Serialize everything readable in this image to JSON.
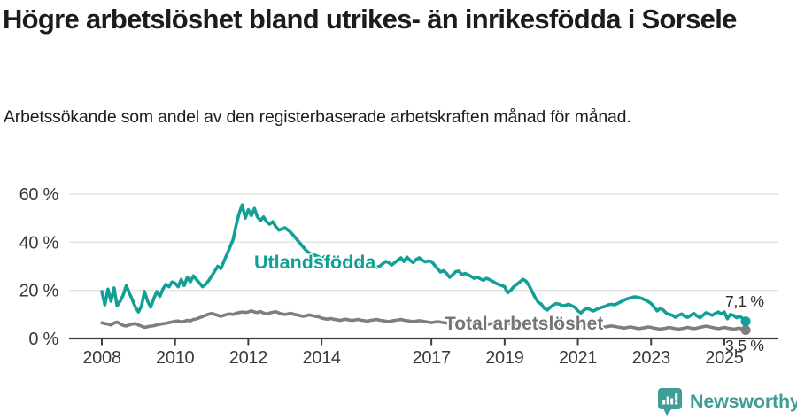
{
  "title": "Högre arbetslöshet bland utrikes- än inrikesfödda i Sorsele",
  "subtitle": "Arbetssökande som andel av den registerbaserade arbetskraften månad för månad.",
  "colors": {
    "series_foreign": "#12a096",
    "series_total": "#7e7e7e",
    "grid": "#e3e3e3",
    "axis": "#3e3e3e",
    "tick_text": "#3a3a3a",
    "end_label_text": "#2d2d2d",
    "total_label_text": "#757575",
    "logo": "#3f9d97"
  },
  "chart_data": {
    "type": "line",
    "x_start_year": 2008,
    "x_step_months": 1,
    "ylim": [
      0,
      60
    ],
    "grid": "horizontal",
    "y_ticks": [
      "0 %",
      "20 %",
      "40 %",
      "60 %"
    ],
    "y_tick_values": [
      0,
      20,
      40,
      60
    ],
    "x_tick_labels": [
      "2008",
      "2010",
      "2012",
      "2014",
      "2017",
      "2019",
      "2021",
      "2023",
      "2025"
    ],
    "x_tick_values": [
      2008,
      2010,
      2012,
      2014,
      2017,
      2019,
      2021,
      2023,
      2025
    ],
    "legend_position": "inline-labels",
    "series": [
      {
        "name": "Total arbetslöshet",
        "end_label": "3,5 %",
        "color": "#7e7e7e",
        "values": [
          6.5,
          6.2,
          6,
          5.6,
          6.4,
          6.8,
          6.1,
          5.4,
          5.2,
          5.6,
          6,
          6.2,
          5.6,
          5.1,
          4.6,
          4.9,
          5.1,
          5.3,
          5.6,
          5.9,
          6.1,
          6.3,
          6.6,
          6.9,
          7.1,
          7.3,
          6.9,
          7.1,
          7.6,
          7.3,
          7.9,
          8.1,
          8.6,
          9.1,
          9.6,
          10.1,
          10.4,
          10,
          9.6,
          9.2,
          9.6,
          10,
          10.2,
          10,
          10.5,
          10.8,
          11,
          10.8,
          11,
          11.5,
          11,
          10.8,
          11.2,
          10.6,
          10.2,
          10.6,
          10.9,
          11.1,
          10.6,
          10.2,
          10,
          10.2,
          10.5,
          10,
          9.8,
          9.5,
          9.2,
          9.5,
          9.8,
          9.5,
          9.2,
          9,
          8.5,
          8.2,
          8,
          8.3,
          8,
          7.8,
          7.5,
          7.8,
          8,
          7.7,
          7.5,
          7.7,
          7.9,
          7.6,
          7.4,
          7.2,
          7.5,
          7.7,
          7.9,
          7.6,
          7.4,
          7.2,
          7,
          7.3,
          7.5,
          7.7,
          7.9,
          7.6,
          7.4,
          7.2,
          7,
          7.2,
          7.4,
          7.2,
          7,
          6.8,
          6.6,
          6.8,
          7,
          6.8,
          6.6,
          6.4,
          6.2,
          6.4,
          6.6,
          6.4,
          6.2,
          6,
          6.2,
          6.5,
          6.7,
          6.5,
          6.2,
          6,
          5.8,
          6,
          6.2,
          6,
          5.8,
          5.6,
          5.8,
          6,
          6.2,
          6,
          5.8,
          5.6,
          5.4,
          5.6,
          5.8,
          5.6,
          5.4,
          5.2,
          5.5,
          5.8,
          6,
          6.2,
          6.5,
          6.2,
          6,
          5.8,
          5.5,
          5.2,
          5,
          5.2,
          5.4,
          5.2,
          5,
          4.8,
          5,
          5.2,
          5,
          4.8,
          4.6,
          4.8,
          5,
          5.2,
          5,
          4.8,
          4.6,
          4.3,
          4.5,
          4.8,
          4.6,
          4.3,
          4.1,
          4.3,
          4.5,
          4.8,
          4.6,
          4.3,
          4.1,
          3.9,
          4.1,
          4.3,
          4.6,
          4.3,
          4.1,
          3.9,
          4.1,
          4.3,
          4.6,
          4.3,
          4.1,
          4.3,
          4.6,
          4.9,
          5.1,
          4.9,
          4.6,
          4.3,
          4.1,
          4.3,
          4.6,
          4.3,
          4.1,
          3.9,
          4.1,
          4.3,
          3.8,
          3.5
        ]
      },
      {
        "name": "Utlandsfödda",
        "end_label": "7,1 %",
        "color": "#12a096",
        "values": [
          19.5,
          14,
          20.5,
          15.5,
          21,
          13.5,
          15.5,
          18,
          22,
          19,
          16,
          13,
          11,
          13.5,
          19.5,
          15.5,
          13,
          16.5,
          19.5,
          17.5,
          20.5,
          22.5,
          21.5,
          23.5,
          23,
          21.5,
          24.5,
          22,
          25.5,
          23.5,
          26,
          24.5,
          23,
          21.5,
          22.5,
          24,
          26,
          28,
          30,
          29,
          32,
          35,
          38,
          41,
          47,
          52,
          55.5,
          50,
          53.5,
          51,
          54,
          50.5,
          49,
          50.5,
          48.5,
          47.5,
          48.5,
          46.5,
          45,
          45.5,
          46,
          45,
          44,
          42.5,
          41,
          39.5,
          38,
          36.5,
          35.5,
          35,
          34.5,
          34,
          33,
          34,
          32.5,
          31.5,
          32,
          33,
          31,
          30.5,
          31.5,
          32,
          30.5,
          30,
          31,
          30,
          29.5,
          30.5,
          31.5,
          30.5,
          29.5,
          30,
          31,
          32,
          31.5,
          30.5,
          31.5,
          32.5,
          33.5,
          32,
          33.8,
          32.5,
          31.5,
          32.8,
          33.5,
          32.5,
          31.8,
          32.2,
          32,
          30.5,
          29,
          27.6,
          28.2,
          27,
          25.4,
          26.5,
          27.8,
          28,
          26.5,
          27,
          26.5,
          25.8,
          25,
          25.5,
          24.8,
          24.2,
          25,
          24.5,
          23.8,
          23,
          22.5,
          22,
          21.5,
          19,
          20,
          21.5,
          22.5,
          23.5,
          24.6,
          23.8,
          22,
          19.5,
          17,
          15,
          14.3,
          12.5,
          11.8,
          13,
          14,
          14.5,
          14.2,
          13.6,
          13.8,
          14.2,
          13.6,
          13,
          11.5,
          10.6,
          11.8,
          12.5,
          12,
          11.4,
          12,
          12.6,
          13,
          13.4,
          14,
          14.2,
          14,
          14.5,
          15.2,
          15.8,
          16.4,
          16.8,
          17.2,
          17.3,
          17,
          16.6,
          16,
          15.4,
          14.5,
          13,
          11.5,
          12.5,
          11.8,
          10.5,
          10,
          9.6,
          8.8,
          9.6,
          10.2,
          9.2,
          8.8,
          9.6,
          10.4,
          9.4,
          8.6,
          9.6,
          10.7,
          10.2,
          9.6,
          10.4,
          11,
          10.2,
          11,
          8.2,
          10,
          9.6,
          8.6,
          9.2,
          8.4,
          7.1
        ]
      }
    ]
  },
  "footer": {
    "brand": "Newsworthy"
  }
}
